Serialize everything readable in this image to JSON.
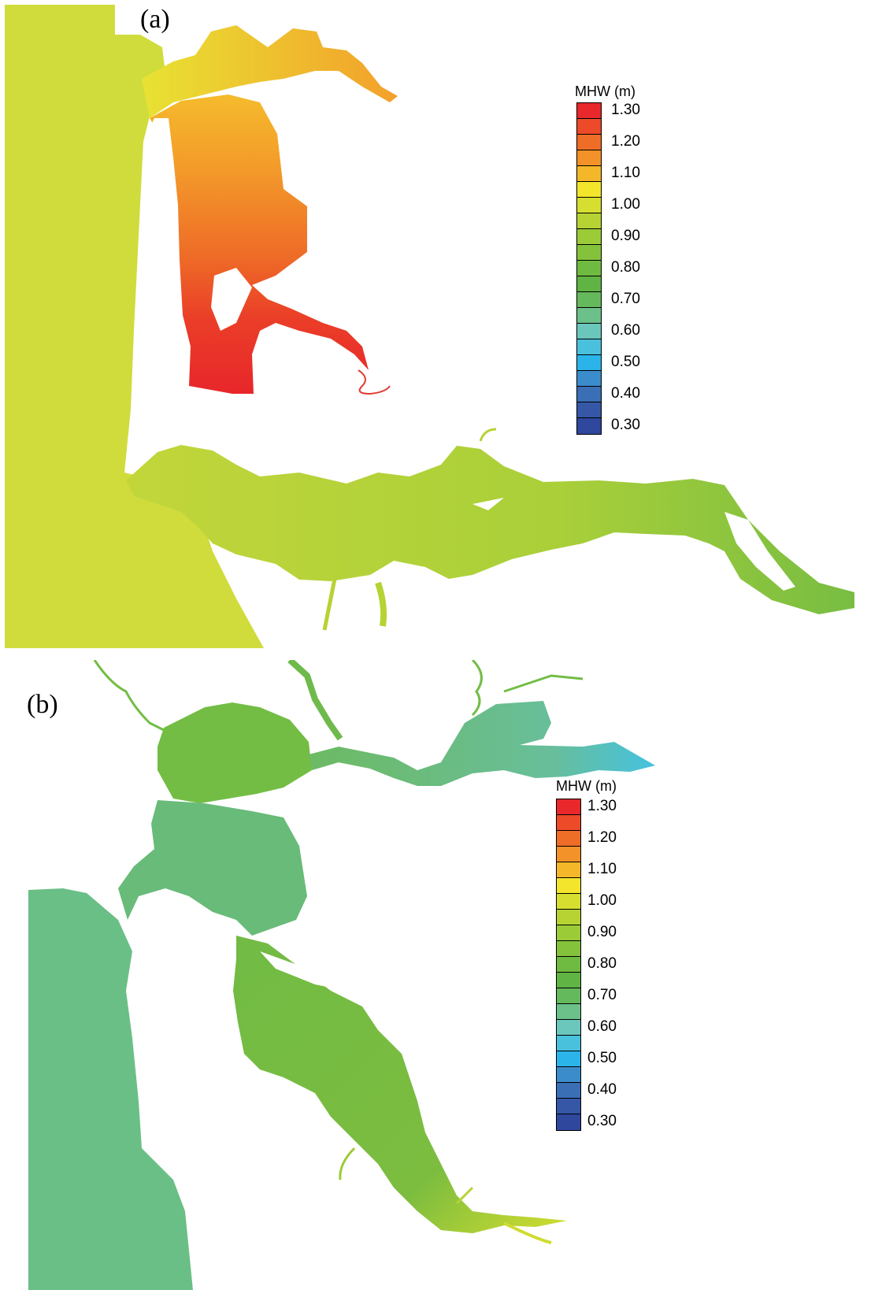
{
  "panels": [
    {
      "label": "(a)"
    },
    {
      "label": "(b)"
    }
  ],
  "legend": {
    "title": "MHW (m)",
    "ticks": [
      "1.30",
      "1.20",
      "1.10",
      "1.00",
      "0.90",
      "0.80",
      "0.70",
      "0.60",
      "0.50",
      "0.40",
      "0.30"
    ],
    "colors": [
      "#e8282a",
      "#ec4a28",
      "#ee6d27",
      "#f39228",
      "#f5b72a",
      "#f2e52c",
      "#d6df30",
      "#b6d333",
      "#9ccb38",
      "#85c23c",
      "#6fba40",
      "#5fb443",
      "#64b95c",
      "#6cc08a",
      "#6bc6bb",
      "#49c1dd",
      "#2bb4ea",
      "#3b8ccb",
      "#3a6fb6",
      "#3557a6",
      "#2f479d"
    ]
  },
  "colors": {
    "ocean_a": "#cfdc3c",
    "bay_red": "#ec2a28",
    "bay_orange": "#f29a2a",
    "channel_green": "#a7cf38",
    "ocean_b": "#6abf86",
    "bay_green": "#73bd45",
    "bay_teal": "#63bd86",
    "cyan": "#4dc3de"
  }
}
